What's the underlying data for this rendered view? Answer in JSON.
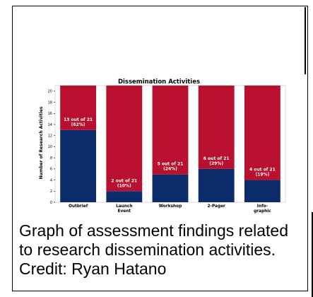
{
  "chart_data": {
    "type": "bar",
    "stacked": true,
    "title": "Dissemination Activities",
    "ylabel": "Number of Research Activities",
    "xlabel": "",
    "ylim": [
      0,
      21
    ],
    "yticks": [
      0,
      2,
      4,
      6,
      8,
      10,
      12,
      14,
      16,
      18,
      20
    ],
    "total": 21,
    "categories": [
      "Outbrief",
      "Launch Event",
      "Workshop",
      "2-Pager",
      "Info-graphic"
    ],
    "category_lines": [
      [
        "Outbrief"
      ],
      [
        "Launch",
        "Event"
      ],
      [
        "Workshop"
      ],
      [
        "2-Pager"
      ],
      [
        "Info-",
        "graphic"
      ]
    ],
    "series": [
      {
        "values": [
          13,
          2,
          5,
          6,
          4
        ],
        "color": "#0d2c6b"
      },
      {
        "values": [
          8,
          19,
          16,
          15,
          17
        ],
        "color": "#b8102e"
      }
    ],
    "data_labels": [
      [
        "13 out of 21",
        "(62%)"
      ],
      [
        "2 out of 21",
        "(10%)"
      ],
      [
        "5 out of 21",
        "(24%)"
      ],
      [
        "6 out of 21",
        "(29%)"
      ],
      [
        "4 out of 21",
        "(19%)"
      ]
    ]
  },
  "caption": "Graph of assessment findings related to research dissemination activities. Credit: Ryan Hatano"
}
